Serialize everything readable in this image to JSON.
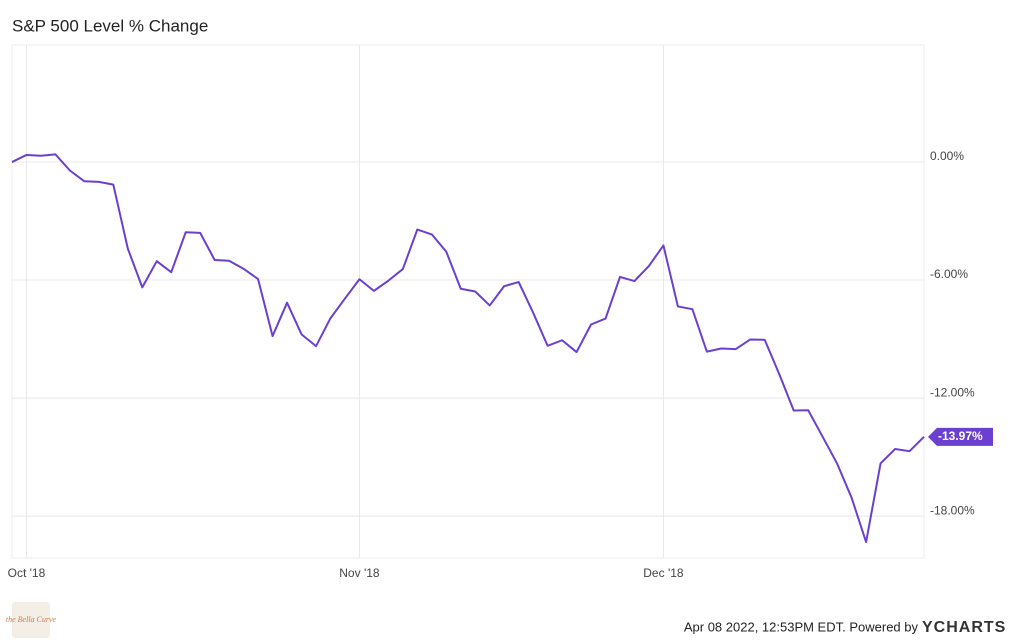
{
  "chart_data": {
    "type": "line",
    "title": "S&P 500 Level % Change",
    "categories": [
      null,
      "Oct '18",
      null,
      null,
      null,
      null,
      null,
      null,
      null,
      null,
      null,
      null,
      null,
      null,
      null,
      null,
      null,
      null,
      null,
      null,
      null,
      null,
      null,
      null,
      "Nov '18",
      null,
      null,
      null,
      null,
      null,
      null,
      null,
      null,
      null,
      null,
      null,
      null,
      null,
      null,
      null,
      null,
      null,
      null,
      null,
      null,
      "Dec '18",
      null,
      null,
      null,
      null,
      null,
      null,
      null,
      null,
      null,
      null,
      null,
      null,
      null,
      null,
      null,
      null,
      null,
      null
    ],
    "values": [
      0,
      0.36,
      0.32,
      0.39,
      -0.43,
      -0.98,
      -1.01,
      -1.15,
      -4.4,
      -6.37,
      -5.04,
      -5.6,
      -3.57,
      -3.6,
      -4.98,
      -5.02,
      -5.43,
      -5.95,
      -8.85,
      -7.15,
      -8.76,
      -9.36,
      -7.94,
      -6.94,
      -5.96,
      -6.55,
      -6.03,
      -5.44,
      -3.43,
      -3.68,
      -4.56,
      -6.44,
      -6.58,
      -7.29,
      -6.31,
      -6.1,
      -7.66,
      -9.34,
      -9.06,
      -9.66,
      -8.26,
      -7.96,
      -5.84,
      -6.05,
      -5.28,
      -4.24,
      -7.34,
      -7.48,
      -9.64,
      -9.48,
      -9.51,
      -9.02,
      -9.04,
      -10.78,
      -12.63,
      -12.62,
      -13.97,
      -15.33,
      -17.07,
      -19.32,
      -15.32,
      -14.59,
      -14.7,
      -13.97
    ],
    "value_labels": [
      null,
      null,
      null,
      null,
      null,
      null,
      null,
      null,
      null,
      null,
      null,
      null,
      null,
      null,
      null,
      null,
      null,
      null,
      null,
      null,
      null,
      null,
      null,
      null,
      null,
      null,
      null,
      null,
      null,
      null,
      null,
      null,
      null,
      null,
      null,
      null,
      null,
      null,
      null,
      null,
      null,
      null,
      null,
      null,
      null,
      null,
      null,
      null,
      null,
      null,
      null,
      null,
      null,
      null,
      null,
      null,
      null,
      null,
      null,
      null,
      null,
      null,
      null,
      "-13.97%"
    ],
    "color": "#6b3fcf",
    "ylim": [
      -20.13,
      5.95
    ],
    "yticks": [
      {
        "value": 0,
        "label": "0.00%"
      },
      {
        "value": -6,
        "label": "-6.00%"
      },
      {
        "value": -12,
        "label": "-12.00%"
      },
      {
        "value": -18,
        "label": "-18.00%"
      }
    ],
    "grid": true
  },
  "footer": {
    "timestamp": "Apr 08 2022, 12:53PM EDT. Powered by",
    "brand": "YCHARTS"
  },
  "watermark": "the Bella Curve"
}
